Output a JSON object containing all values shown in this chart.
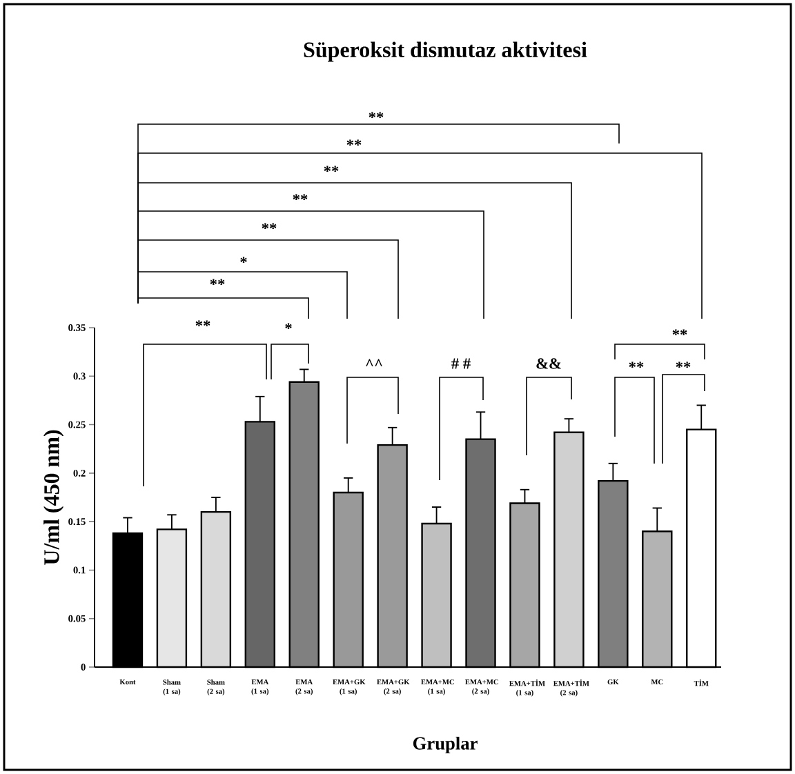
{
  "chart_data": {
    "type": "bar",
    "title": "Süperoksit dismutaz aktivitesi",
    "xlabel": "Gruplar",
    "ylabel": "U/ml (450 nm)",
    "categories": [
      "Kont",
      "Sham (1 sa)",
      "Sham (2 sa)",
      "EMA (1 sa)",
      "EMA (2 sa)",
      "EMA+GK (1 sa)",
      "EMA+GK (2 sa)",
      "EMA+MC (1 sa)",
      "EMA+MC (2 sa)",
      "EMA+TİM (1 sa)",
      "EMA+TİM (2 sa)",
      "GK",
      "MC",
      "TİM"
    ],
    "values": [
      0.138,
      0.142,
      0.16,
      0.253,
      0.294,
      0.18,
      0.229,
      0.148,
      0.235,
      0.169,
      0.242,
      0.192,
      0.14,
      0.245
    ],
    "errors": [
      0.016,
      0.015,
      0.015,
      0.026,
      0.013,
      0.015,
      0.018,
      0.017,
      0.028,
      0.014,
      0.014,
      0.018,
      0.024,
      0.025
    ],
    "colors": [
      "#000000",
      "#e6e6e6",
      "#d9d9d9",
      "#666666",
      "#808080",
      "#999999",
      "#9a9a9a",
      "#bfbfbf",
      "#6e6e6e",
      "#a6a6a6",
      "#d0d0d0",
      "#7f7f7f",
      "#b3b3b3",
      "#ffffff"
    ],
    "ylim": [
      0,
      0.35
    ],
    "yticks": [
      0,
      0.05,
      0.1,
      0.15,
      0.2,
      0.25,
      0.3,
      0.35
    ],
    "annotations": [
      "**",
      "**",
      "**",
      "**",
      "**",
      "*",
      "**",
      "**",
      "*",
      "^^",
      "# #",
      "&&",
      "**",
      "**",
      "**"
    ]
  }
}
